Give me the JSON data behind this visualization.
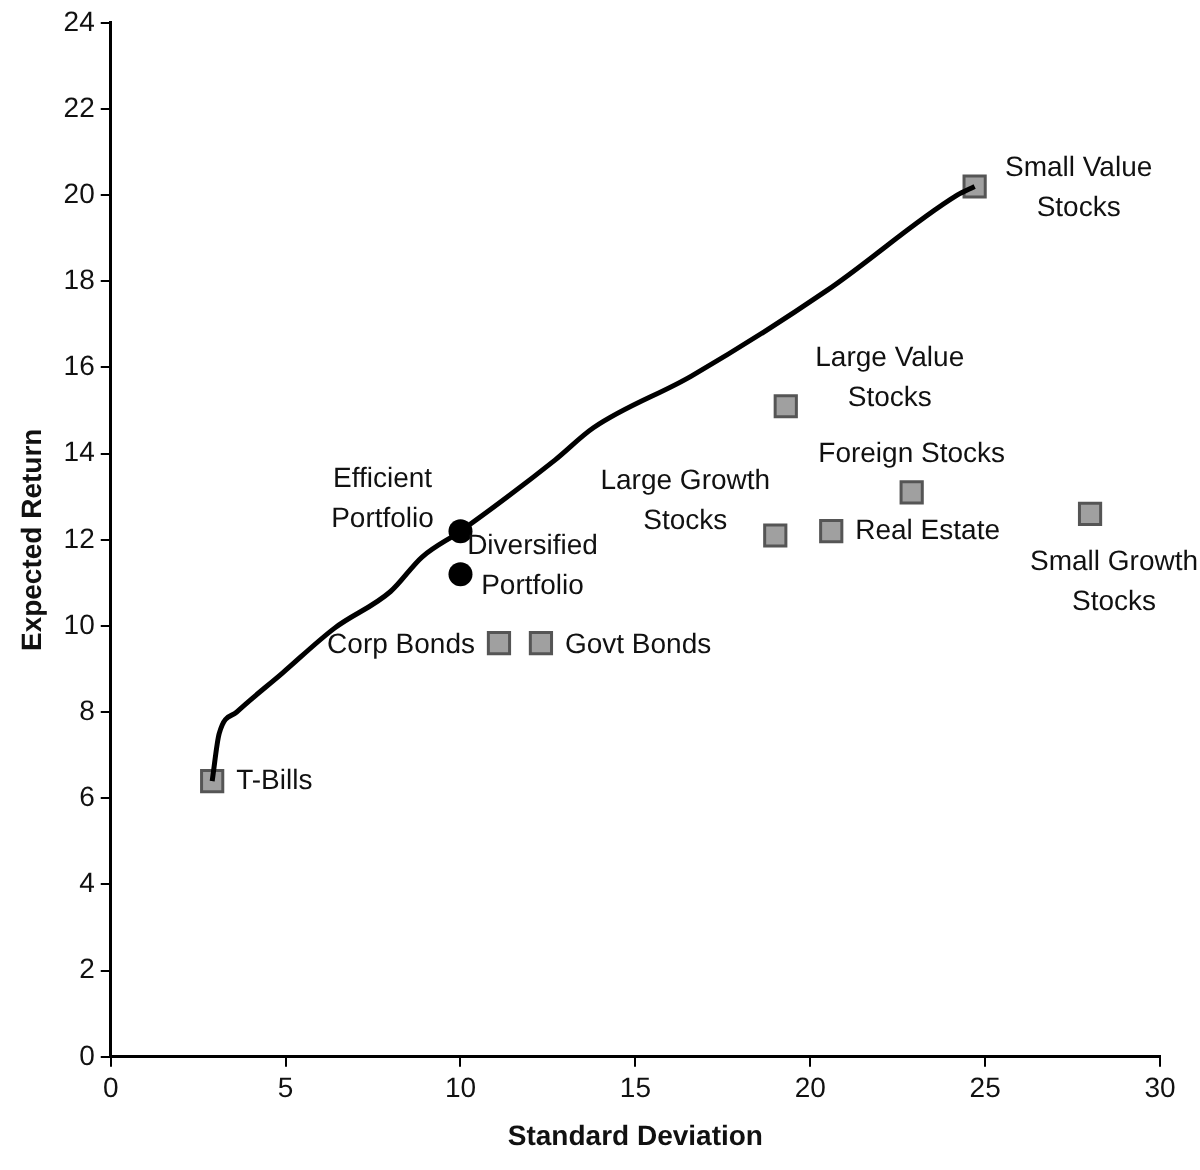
{
  "chart_data": {
    "type": "scatter",
    "xlabel": "Standard Deviation",
    "ylabel": "Expected Return",
    "xlim": [
      0,
      30
    ],
    "ylim": [
      0,
      24
    ],
    "xticks": [
      0,
      5,
      10,
      15,
      20,
      25,
      30
    ],
    "yticks": [
      0,
      2,
      4,
      6,
      8,
      10,
      12,
      14,
      16,
      18,
      20,
      22,
      24
    ],
    "grid": false,
    "legend": false,
    "series": [
      {
        "type": "line",
        "color": "#000000",
        "marker": "none",
        "x": [
          2.9,
          3.1,
          3.6,
          4.9,
          6.4,
          8.0,
          8.9,
          10.0,
          12.7,
          13.8,
          16.6,
          20.5,
          24.2,
          24.7
        ],
        "values": [
          6.4,
          7.5,
          8.0,
          8.9,
          9.95,
          10.8,
          11.6,
          12.2,
          13.85,
          14.6,
          15.8,
          17.8,
          20.0,
          20.2
        ]
      },
      {
        "name": "T-Bills",
        "color": "#a0a0a0",
        "marker": "square",
        "x": [
          2.9
        ],
        "values": [
          6.4
        ]
      },
      {
        "name": "Corp Bonds",
        "color": "#a0a0a0",
        "marker": "square",
        "x": [
          11.1
        ],
        "values": [
          9.6
        ]
      },
      {
        "name": "Govt Bonds",
        "color": "#a0a0a0",
        "marker": "square",
        "x": [
          12.3
        ],
        "values": [
          9.6
        ]
      },
      {
        "name": "Large Growth Stocks",
        "color": "#a0a0a0",
        "marker": "square",
        "x": [
          19.0
        ],
        "values": [
          12.1
        ]
      },
      {
        "name": "Real Estate",
        "color": "#a0a0a0",
        "marker": "square",
        "x": [
          20.6
        ],
        "values": [
          12.2
        ]
      },
      {
        "name": "Foreign Stocks",
        "color": "#a0a0a0",
        "marker": "square",
        "x": [
          22.9
        ],
        "values": [
          13.1
        ]
      },
      {
        "name": "Large Value Stocks",
        "color": "#a0a0a0",
        "marker": "square",
        "x": [
          19.3
        ],
        "values": [
          15.1
        ]
      },
      {
        "name": "Small Value Stocks",
        "color": "#a0a0a0",
        "marker": "square",
        "x": [
          24.7
        ],
        "values": [
          20.2
        ]
      },
      {
        "name": "Small Growth Stocks",
        "color": "#a0a0a0",
        "marker": "square",
        "x": [
          28.0
        ],
        "values": [
          12.6
        ]
      },
      {
        "name": "Efficient Portfolio",
        "color": "#000000",
        "marker": "circle",
        "x": [
          10.0
        ],
        "values": [
          12.2
        ]
      },
      {
        "name": "Diversified Portfolio",
        "color": "#000000",
        "marker": "circle",
        "x": [
          10.0
        ],
        "values": [
          11.2
        ]
      }
    ]
  }
}
